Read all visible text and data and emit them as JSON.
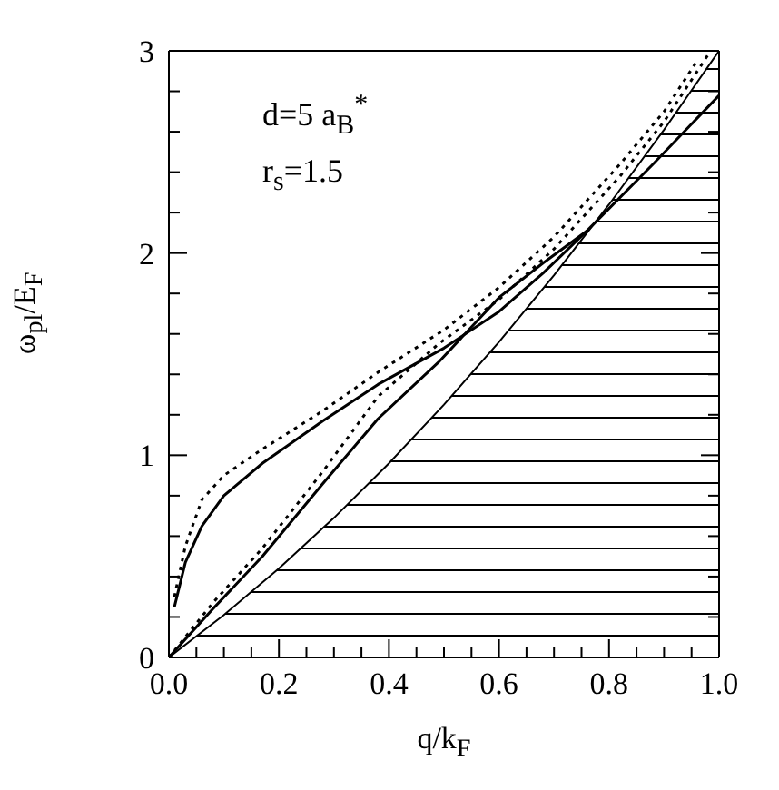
{
  "chart_data": {
    "type": "line",
    "xlabel": "q/k$_{F}$",
    "ylabel": "ω$_{pl}$/E$_{F}$",
    "annotations": [
      "d=5 a$_{B}$$^{*}$",
      "r$_{s}$=1.5"
    ],
    "xlim": [
      0,
      1
    ],
    "ylim": [
      0,
      3
    ],
    "xticks": [
      {
        "value": 0,
        "label": "0.0"
      },
      {
        "value": 0.05,
        "label": null
      },
      {
        "value": 0.1,
        "label": null
      },
      {
        "value": 0.15,
        "label": null
      },
      {
        "value": 0.2,
        "label": "0.2"
      },
      {
        "value": 0.25,
        "label": null
      },
      {
        "value": 0.3,
        "label": null
      },
      {
        "value": 0.35,
        "label": null
      },
      {
        "value": 0.4,
        "label": "0.4"
      },
      {
        "value": 0.45,
        "label": null
      },
      {
        "value": 0.5,
        "label": null
      },
      {
        "value": 0.55,
        "label": null
      },
      {
        "value": 0.6,
        "label": "0.6"
      },
      {
        "value": 0.65,
        "label": null
      },
      {
        "value": 0.7,
        "label": null
      },
      {
        "value": 0.75,
        "label": null
      },
      {
        "value": 0.8,
        "label": "0.8"
      },
      {
        "value": 0.85,
        "label": null
      },
      {
        "value": 0.9,
        "label": null
      },
      {
        "value": 0.95,
        "label": null
      },
      {
        "value": 1,
        "label": "1.0"
      }
    ],
    "yticks": [
      0,
      {
        "value": 0.2,
        "label": null
      },
      {
        "value": 0.4,
        "label": null
      },
      {
        "value": 0.6,
        "label": null
      },
      {
        "value": 0.8,
        "label": null
      },
      1,
      {
        "value": 1.2,
        "label": null
      },
      {
        "value": 1.4,
        "label": null
      },
      {
        "value": 1.6,
        "label": null
      },
      {
        "value": 1.8,
        "label": null
      },
      2,
      {
        "value": 2.2,
        "label": null
      },
      {
        "value": 2.4,
        "label": null
      },
      {
        "value": 2.6,
        "label": null
      },
      {
        "value": 2.8,
        "label": null
      },
      3
    ],
    "grid": false,
    "legend": false,
    "marker": "none",
    "series": [
      {
        "type": "area",
        "color": "#000000",
        "x": [
          0,
          0.1,
          0.2,
          0.3,
          0.4,
          0.5,
          0.6,
          0.7,
          0.8,
          0.9,
          1.0
        ],
        "values": [
          0,
          0.21,
          0.44,
          0.69,
          0.96,
          1.25,
          1.56,
          1.89,
          2.24,
          2.61,
          3.0
        ]
      },
      {
        "color": "#000000",
        "line_style": "solid",
        "x": [
          0.01,
          0.03,
          0.06,
          0.1,
          0.17,
          0.28,
          0.38,
          0.5,
          0.6,
          0.68,
          0.76,
          0.88,
          1.0
        ],
        "values": [
          0.25,
          0.47,
          0.65,
          0.8,
          0.96,
          1.17,
          1.35,
          1.53,
          1.71,
          1.9,
          2.11,
          2.44,
          2.78
        ]
      },
      {
        "color": "#000000",
        "line_style": "solid",
        "x": [
          0,
          0.08,
          0.17,
          0.28,
          0.38,
          0.49,
          0.6,
          0.68,
          0.76
        ],
        "values": [
          0,
          0.24,
          0.5,
          0.86,
          1.18,
          1.46,
          1.78,
          1.95,
          2.11
        ]
      },
      {
        "color": "#000000",
        "line_style": "dotted",
        "x": [
          0.01,
          0.03,
          0.06,
          0.1,
          0.17,
          0.28,
          0.38,
          0.5,
          0.6,
          0.7,
          0.82,
          0.9,
          0.96
        ],
        "values": [
          0.3,
          0.55,
          0.78,
          0.9,
          1.03,
          1.22,
          1.41,
          1.62,
          1.83,
          2.08,
          2.44,
          2.7,
          2.95
        ]
      },
      {
        "color": "#000000",
        "line_style": "dotted",
        "x": [
          0,
          0.08,
          0.17,
          0.28,
          0.38,
          0.49,
          0.6,
          0.7,
          0.82,
          0.9,
          0.98
        ],
        "values": [
          0,
          0.27,
          0.54,
          0.92,
          1.29,
          1.55,
          1.77,
          2.02,
          2.38,
          2.65,
          2.98
        ]
      }
    ]
  }
}
